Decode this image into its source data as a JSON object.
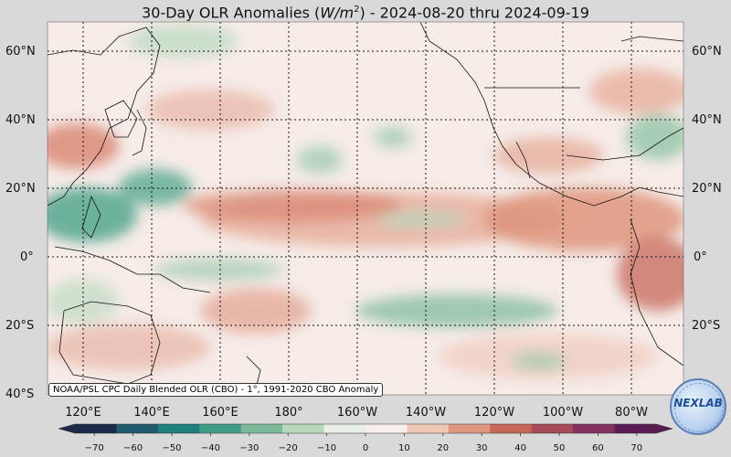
{
  "title": {
    "prefix": "30-Day OLR Anomalies (",
    "unit_base": "W/m",
    "unit_exp": "2",
    "suffix": ") - 2024-08-20 thru 2024-09-19"
  },
  "note": "NOAA/PSL CPC Daily Blended OLR (CBO) - 1°, 1991-2020 CBO Anomaly",
  "lat_labels": [
    "60°N",
    "40°N",
    "20°N",
    "0°",
    "20°S",
    "40°S"
  ],
  "lon_labels": [
    "120°E",
    "140°E",
    "160°E",
    "180°",
    "160°W",
    "140°W",
    "120°W",
    "100°W",
    "80°W"
  ],
  "colorbar": {
    "ticks": [
      "−70",
      "−60",
      "−50",
      "−40",
      "−30",
      "−20",
      "−10",
      "0",
      "10",
      "20",
      "30",
      "40",
      "50",
      "60",
      "70"
    ],
    "min": -75,
    "max": 75,
    "colors": [
      "#1b2a4a",
      "#1f5a6e",
      "#1f7f7a",
      "#3f9c86",
      "#7bb99a",
      "#b8d8bd",
      "#e7efe6",
      "#f6efec",
      "#f0c6b6",
      "#e0957f",
      "#c7675a",
      "#a54a56",
      "#84315f",
      "#5a1b52"
    ]
  },
  "logo": {
    "text": "NEXLAB"
  },
  "anomaly_regions": [
    {
      "type": "positive",
      "name": "tropical-north-pacific-band"
    },
    {
      "type": "negative",
      "name": "western-pacific-warm-pool"
    },
    {
      "type": "negative",
      "name": "south-pacific-convergence-zone"
    },
    {
      "type": "positive",
      "name": "northern-south-america"
    },
    {
      "type": "positive",
      "name": "china-japan"
    }
  ]
}
